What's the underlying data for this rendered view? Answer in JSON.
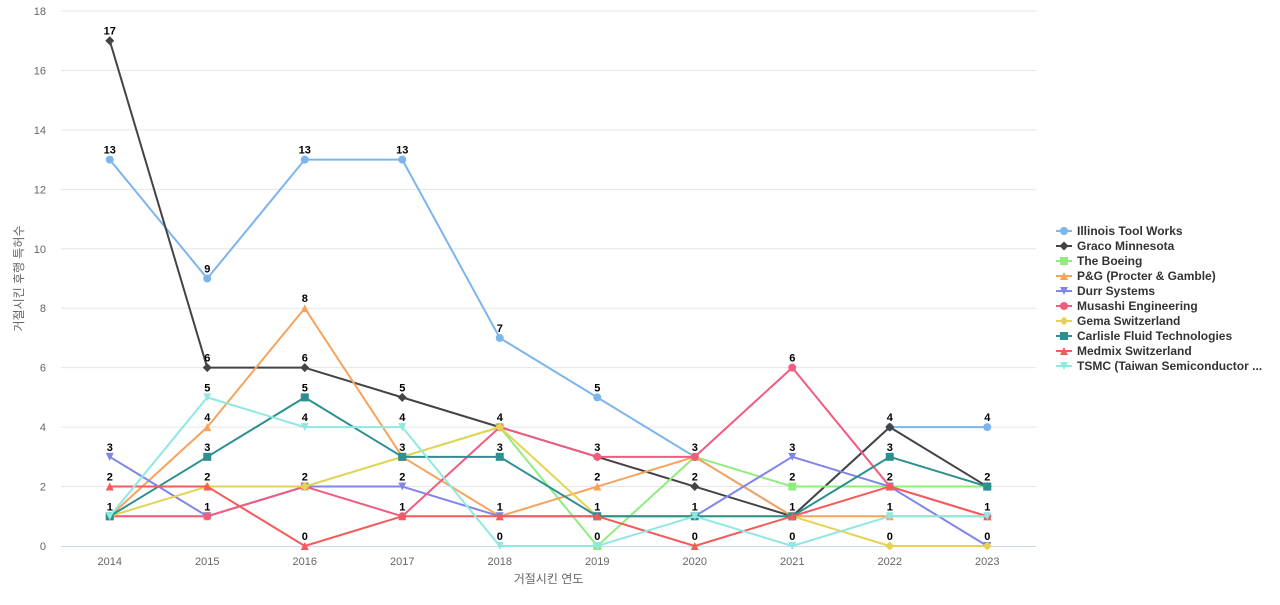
{
  "chart_data": {
    "type": "line",
    "title": "",
    "xlabel": "거절시킨 연도",
    "ylabel": "거절시킨 후행 특허수",
    "ylim": [
      0,
      18
    ],
    "yticks": [
      0,
      2,
      4,
      6,
      8,
      10,
      12,
      14,
      16,
      18
    ],
    "grid": true,
    "legend_position": "right",
    "categories": [
      "2014",
      "2015",
      "2016",
      "2017",
      "2018",
      "2019",
      "2020",
      "2021",
      "2022",
      "2023"
    ],
    "series": [
      {
        "name": "Illinois Tool Works",
        "color": "#7cb5ec",
        "marker": "circle",
        "values": [
          13,
          9,
          13,
          13,
          7,
          5,
          3,
          1,
          4,
          4
        ]
      },
      {
        "name": "Graco Minnesota",
        "color": "#434348",
        "marker": "diamond",
        "values": [
          17,
          6,
          6,
          5,
          4,
          3,
          2,
          1,
          4,
          2
        ]
      },
      {
        "name": "The Boeing",
        "color": "#90ed7d",
        "marker": "square",
        "values": [
          1,
          1,
          2,
          3,
          4,
          0,
          3,
          2,
          2,
          2
        ]
      },
      {
        "name": "P&G (Procter & Gamble)",
        "color": "#f7a35c",
        "marker": "triangle",
        "values": [
          1,
          4,
          8,
          3,
          1,
          2,
          3,
          1,
          1,
          1
        ]
      },
      {
        "name": "Durr Systems",
        "color": "#8085e9",
        "marker": "triangle-down",
        "values": [
          3,
          1,
          2,
          2,
          1,
          1,
          1,
          3,
          2,
          0
        ]
      },
      {
        "name": "Musashi Engineering",
        "color": "#f15c80",
        "marker": "circle",
        "values": [
          1,
          1,
          2,
          1,
          4,
          3,
          3,
          6,
          2,
          1
        ]
      },
      {
        "name": "Gema Switzerland",
        "color": "#e4d354",
        "marker": "diamond",
        "values": [
          1,
          2,
          2,
          3,
          4,
          1,
          1,
          1,
          0,
          0
        ]
      },
      {
        "name": "Carlisle Fluid Technologies",
        "color": "#2b908f",
        "marker": "square",
        "values": [
          1,
          3,
          5,
          3,
          3,
          1,
          1,
          1,
          3,
          2
        ]
      },
      {
        "name": "Medmix Switzerland",
        "color": "#f45b5b",
        "marker": "triangle",
        "values": [
          2,
          2,
          0,
          1,
          1,
          1,
          0,
          1,
          2,
          1
        ]
      },
      {
        "name": "TSMC (Taiwan Semiconductor ...",
        "color": "#91e8e1",
        "marker": "triangle-down",
        "values": [
          1,
          5,
          4,
          4,
          0,
          0,
          1,
          0,
          1,
          1
        ]
      }
    ],
    "data_labels": [
      {
        "x": "2014",
        "y": 17,
        "text": "17"
      },
      {
        "x": "2014",
        "y": 13,
        "text": "13"
      },
      {
        "x": "2014",
        "y": 3,
        "text": "3"
      },
      {
        "x": "2014",
        "y": 2,
        "text": "2"
      },
      {
        "x": "2014",
        "y": 1,
        "text": "1"
      },
      {
        "x": "2015",
        "y": 9,
        "text": "9"
      },
      {
        "x": "2015",
        "y": 6,
        "text": "6"
      },
      {
        "x": "2015",
        "y": 5,
        "text": "5"
      },
      {
        "x": "2015",
        "y": 4,
        "text": "4"
      },
      {
        "x": "2015",
        "y": 3,
        "text": "3"
      },
      {
        "x": "2015",
        "y": 2,
        "text": "2"
      },
      {
        "x": "2015",
        "y": 1,
        "text": "1"
      },
      {
        "x": "2016",
        "y": 13,
        "text": "13"
      },
      {
        "x": "2016",
        "y": 8,
        "text": "8"
      },
      {
        "x": "2016",
        "y": 6,
        "text": "6"
      },
      {
        "x": "2016",
        "y": 5,
        "text": "5"
      },
      {
        "x": "2016",
        "y": 4,
        "text": "4"
      },
      {
        "x": "2016",
        "y": 2,
        "text": "2"
      },
      {
        "x": "2016",
        "y": 0,
        "text": "0"
      },
      {
        "x": "2017",
        "y": 13,
        "text": "13"
      },
      {
        "x": "2017",
        "y": 5,
        "text": "5"
      },
      {
        "x": "2017",
        "y": 4,
        "text": "4"
      },
      {
        "x": "2017",
        "y": 3,
        "text": "3"
      },
      {
        "x": "2017",
        "y": 2,
        "text": "2"
      },
      {
        "x": "2017",
        "y": 1,
        "text": "1"
      },
      {
        "x": "2018",
        "y": 7,
        "text": "7"
      },
      {
        "x": "2018",
        "y": 4,
        "text": "4"
      },
      {
        "x": "2018",
        "y": 3,
        "text": "3"
      },
      {
        "x": "2018",
        "y": 1,
        "text": "1"
      },
      {
        "x": "2018",
        "y": 0,
        "text": "0"
      },
      {
        "x": "2019",
        "y": 5,
        "text": "5"
      },
      {
        "x": "2019",
        "y": 3,
        "text": "3"
      },
      {
        "x": "2019",
        "y": 2,
        "text": "2"
      },
      {
        "x": "2019",
        "y": 1,
        "text": "1"
      },
      {
        "x": "2019",
        "y": 0,
        "text": "0"
      },
      {
        "x": "2020",
        "y": 3,
        "text": "3"
      },
      {
        "x": "2020",
        "y": 2,
        "text": "2"
      },
      {
        "x": "2020",
        "y": 1,
        "text": "1"
      },
      {
        "x": "2020",
        "y": 0,
        "text": "0"
      },
      {
        "x": "2021",
        "y": 6,
        "text": "6"
      },
      {
        "x": "2021",
        "y": 3,
        "text": "3"
      },
      {
        "x": "2021",
        "y": 2,
        "text": "2"
      },
      {
        "x": "2021",
        "y": 1,
        "text": "1"
      },
      {
        "x": "2021",
        "y": 0,
        "text": "0"
      },
      {
        "x": "2022",
        "y": 4,
        "text": "4"
      },
      {
        "x": "2022",
        "y": 3,
        "text": "3"
      },
      {
        "x": "2022",
        "y": 2,
        "text": "2"
      },
      {
        "x": "2022",
        "y": 1,
        "text": "1"
      },
      {
        "x": "2022",
        "y": 0,
        "text": "0"
      },
      {
        "x": "2023",
        "y": 4,
        "text": "4"
      },
      {
        "x": "2023",
        "y": 2,
        "text": "2"
      },
      {
        "x": "2023",
        "y": 1,
        "text": "1"
      },
      {
        "x": "2023",
        "y": 0,
        "text": "0"
      }
    ]
  }
}
